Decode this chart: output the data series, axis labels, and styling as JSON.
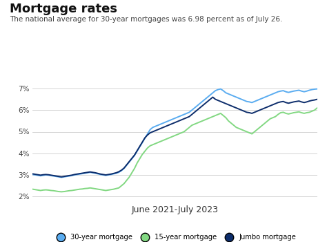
{
  "title": "Mortgage rates",
  "subtitle": "The national average for 30-year mortgages was 6.98 percent as of July 26.",
  "xlabel": "June 2021-July 2023",
  "background_color": "#ffffff",
  "title_fontsize": 13,
  "subtitle_fontsize": 7.5,
  "xlabel_fontsize": 9,
  "yticks": [
    2,
    3,
    4,
    5,
    6,
    7
  ],
  "ylim": [
    1.8,
    7.4
  ],
  "color_30yr": "#5aacf0",
  "color_15yr": "#82d882",
  "color_jumbo": "#0d2d6b",
  "legend_30yr": "30-year mortgage",
  "legend_15yr": "15-year mortgage",
  "legend_jumbo": "Jumbo mortgage",
  "n_points": 110,
  "rate_30yr": [
    3.02,
    3.0,
    2.98,
    2.96,
    2.98,
    3.0,
    2.99,
    2.97,
    2.95,
    2.93,
    2.91,
    2.89,
    2.91,
    2.93,
    2.95,
    2.97,
    3.0,
    3.02,
    3.04,
    3.06,
    3.08,
    3.1,
    3.12,
    3.1,
    3.08,
    3.05,
    3.02,
    3.0,
    2.98,
    3.0,
    3.02,
    3.05,
    3.08,
    3.12,
    3.2,
    3.3,
    3.45,
    3.6,
    3.75,
    3.9,
    4.1,
    4.3,
    4.5,
    4.7,
    4.9,
    5.1,
    5.2,
    5.25,
    5.3,
    5.35,
    5.4,
    5.45,
    5.5,
    5.55,
    5.6,
    5.65,
    5.7,
    5.75,
    5.8,
    5.85,
    5.9,
    6.0,
    6.1,
    6.2,
    6.3,
    6.4,
    6.5,
    6.6,
    6.7,
    6.8,
    6.9,
    6.95,
    6.98,
    6.9,
    6.8,
    6.75,
    6.7,
    6.65,
    6.6,
    6.55,
    6.5,
    6.45,
    6.4,
    6.38,
    6.35,
    6.4,
    6.45,
    6.5,
    6.55,
    6.6,
    6.65,
    6.7,
    6.75,
    6.8,
    6.85,
    6.88,
    6.9,
    6.85,
    6.82,
    6.85,
    6.88,
    6.9,
    6.92,
    6.88,
    6.85,
    6.88,
    6.92,
    6.95,
    6.97,
    6.98
  ],
  "rate_15yr": [
    2.34,
    2.32,
    2.3,
    2.28,
    2.3,
    2.31,
    2.3,
    2.28,
    2.27,
    2.25,
    2.23,
    2.22,
    2.23,
    2.25,
    2.27,
    2.28,
    2.3,
    2.32,
    2.34,
    2.35,
    2.37,
    2.38,
    2.4,
    2.38,
    2.36,
    2.34,
    2.32,
    2.3,
    2.28,
    2.3,
    2.32,
    2.34,
    2.37,
    2.4,
    2.5,
    2.6,
    2.75,
    2.9,
    3.1,
    3.3,
    3.55,
    3.75,
    3.95,
    4.1,
    4.25,
    4.35,
    4.4,
    4.45,
    4.5,
    4.55,
    4.6,
    4.65,
    4.7,
    4.75,
    4.8,
    4.85,
    4.9,
    4.95,
    5.0,
    5.1,
    5.2,
    5.3,
    5.35,
    5.4,
    5.45,
    5.5,
    5.55,
    5.6,
    5.65,
    5.7,
    5.75,
    5.8,
    5.85,
    5.75,
    5.65,
    5.5,
    5.4,
    5.3,
    5.2,
    5.15,
    5.1,
    5.05,
    5.0,
    4.95,
    4.9,
    5.0,
    5.1,
    5.2,
    5.3,
    5.4,
    5.5,
    5.6,
    5.65,
    5.7,
    5.8,
    5.88,
    5.9,
    5.85,
    5.82,
    5.85,
    5.88,
    5.9,
    5.92,
    5.88,
    5.85,
    5.88,
    5.9,
    5.95,
    6.0,
    6.1
  ],
  "rate_jumbo": [
    3.05,
    3.03,
    3.01,
    2.99,
    3.01,
    3.02,
    3.01,
    2.99,
    2.97,
    2.95,
    2.93,
    2.91,
    2.93,
    2.95,
    2.97,
    2.99,
    3.02,
    3.04,
    3.06,
    3.08,
    3.1,
    3.12,
    3.14,
    3.12,
    3.1,
    3.07,
    3.04,
    3.02,
    3.0,
    3.02,
    3.04,
    3.07,
    3.1,
    3.15,
    3.22,
    3.32,
    3.47,
    3.62,
    3.77,
    3.92,
    4.12,
    4.32,
    4.52,
    4.72,
    4.85,
    4.95,
    5.0,
    5.05,
    5.1,
    5.15,
    5.2,
    5.25,
    5.3,
    5.35,
    5.4,
    5.45,
    5.5,
    5.55,
    5.6,
    5.65,
    5.7,
    5.8,
    5.9,
    6.0,
    6.1,
    6.2,
    6.3,
    6.4,
    6.5,
    6.6,
    6.5,
    6.45,
    6.4,
    6.35,
    6.3,
    6.25,
    6.2,
    6.15,
    6.1,
    6.05,
    6.0,
    5.95,
    5.9,
    5.88,
    5.85,
    5.9,
    5.95,
    6.0,
    6.05,
    6.1,
    6.15,
    6.2,
    6.25,
    6.3,
    6.35,
    6.38,
    6.4,
    6.35,
    6.32,
    6.35,
    6.38,
    6.4,
    6.42,
    6.38,
    6.35,
    6.38,
    6.42,
    6.45,
    6.47,
    6.5
  ]
}
